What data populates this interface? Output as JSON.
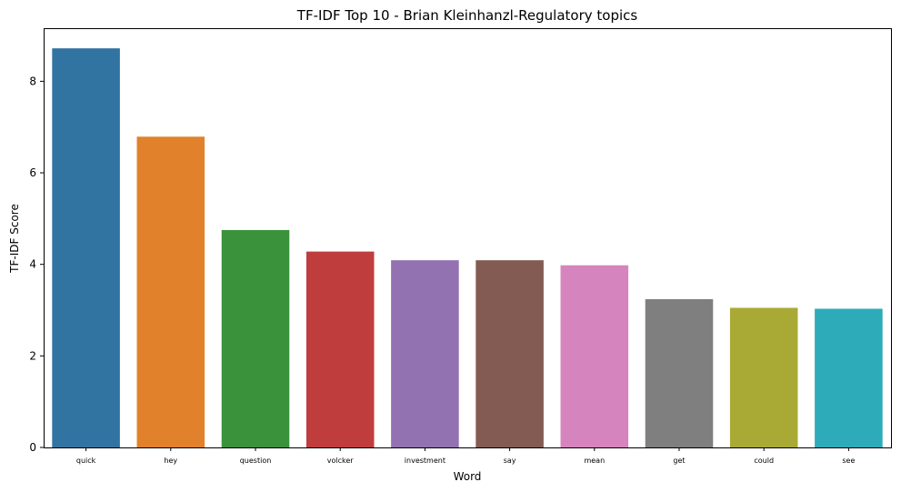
{
  "chart_data": {
    "type": "bar",
    "title": "TF-IDF Top 10 - Brian Kleinhanzl-Regulatory topics",
    "xlabel": "Word",
    "ylabel": "TF-IDF Score",
    "categories": [
      "quick",
      "hey",
      "question",
      "volcker",
      "investment",
      "say",
      "mean",
      "get",
      "could",
      "see"
    ],
    "values": [
      8.72,
      6.79,
      4.75,
      4.28,
      4.09,
      4.09,
      3.98,
      3.24,
      3.05,
      3.03
    ],
    "colors": [
      "#3274a1",
      "#e1812c",
      "#3a923a",
      "#c03d3e",
      "#9372b2",
      "#845b53",
      "#d684bd",
      "#7f7f7f",
      "#a9aa35",
      "#2eabb8"
    ],
    "ylim": [
      0,
      9.16
    ],
    "yticks": [
      0,
      2,
      4,
      6,
      8
    ],
    "grid": false,
    "legend": "none"
  }
}
